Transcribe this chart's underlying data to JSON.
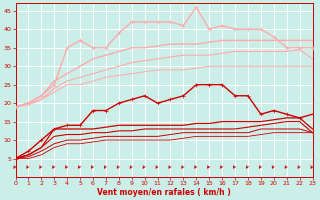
{
  "xlabel": "Vent moyen/en rafales ( km/h )",
  "xlim": [
    0,
    23
  ],
  "ylim": [
    0,
    47
  ],
  "yticks": [
    5,
    10,
    15,
    20,
    25,
    30,
    35,
    40,
    45
  ],
  "xticks": [
    0,
    1,
    2,
    3,
    4,
    5,
    6,
    7,
    8,
    9,
    10,
    11,
    12,
    13,
    14,
    15,
    16,
    17,
    18,
    19,
    20,
    21,
    22,
    23
  ],
  "bg_color": "#cceee8",
  "grid_color": "#ffffff",
  "series": [
    {
      "y": [
        19,
        20,
        22,
        25,
        35,
        37,
        35,
        35,
        39,
        42,
        42,
        42,
        42,
        41,
        46,
        40,
        41,
        40,
        40,
        40,
        38,
        35,
        35,
        35
      ],
      "color": "#ffaaaa",
      "lw": 1.0,
      "marker": "+",
      "ms": 3.0
    },
    {
      "y": [
        19,
        20,
        22,
        26,
        28,
        30,
        32,
        33,
        34,
        35,
        35,
        35.5,
        36,
        36,
        36,
        36.5,
        37,
        37,
        37,
        37,
        37,
        37,
        37,
        37
      ],
      "color": "#ffaaaa",
      "lw": 1.0,
      "marker": null,
      "ms": 0
    },
    {
      "y": [
        19,
        20,
        21,
        24,
        26,
        27,
        28,
        29,
        30,
        31,
        31.5,
        32,
        32.5,
        33,
        33,
        33,
        33.5,
        34,
        34,
        34,
        34,
        34,
        34.5,
        32
      ],
      "color": "#ffaaaa",
      "lw": 0.8,
      "marker": null,
      "ms": 0
    },
    {
      "y": [
        19,
        19.5,
        21,
        23,
        25,
        25,
        26,
        27,
        27.5,
        28,
        28.5,
        29,
        29,
        29,
        29.5,
        30,
        30,
        30,
        30,
        30,
        30,
        30,
        30,
        30
      ],
      "color": "#ffaaaa",
      "lw": 0.7,
      "marker": null,
      "ms": 0
    },
    {
      "y": [
        5,
        7,
        10,
        13,
        14,
        14,
        18,
        18,
        20,
        21,
        22,
        20,
        21,
        22,
        25,
        25,
        25,
        22,
        22,
        17,
        18,
        17,
        16,
        17
      ],
      "color": "#cc0000",
      "lw": 1.0,
      "marker": "+",
      "ms": 3.0
    },
    {
      "y": [
        5,
        6,
        8,
        13,
        13,
        13,
        13,
        13.5,
        14,
        14,
        14,
        14,
        14,
        14,
        14.5,
        14.5,
        15,
        15,
        15,
        15,
        15.5,
        16,
        16,
        13
      ],
      "color": "#cc0000",
      "lw": 0.9,
      "marker": null,
      "ms": 0
    },
    {
      "y": [
        5,
        6,
        8,
        11,
        11.5,
        11.5,
        12,
        12,
        12.5,
        12.5,
        13,
        13,
        13,
        13,
        13,
        13,
        13,
        13,
        13.5,
        14,
        14.5,
        15,
        15,
        12
      ],
      "color": "#cc0000",
      "lw": 0.8,
      "marker": null,
      "ms": 0
    },
    {
      "y": [
        5,
        5.5,
        7,
        9,
        10,
        10,
        10.5,
        11,
        11,
        11,
        11,
        11,
        11.5,
        12,
        12,
        12,
        12,
        12,
        12,
        13,
        13,
        13,
        13,
        12
      ],
      "color": "#cc0000",
      "lw": 0.7,
      "marker": null,
      "ms": 0
    },
    {
      "y": [
        5,
        5,
        6,
        8,
        9,
        9,
        9.5,
        10,
        10,
        10,
        10,
        10,
        10,
        10.5,
        11,
        11,
        11,
        11,
        11,
        11.5,
        12,
        12,
        12,
        12
      ],
      "color": "#cc0000",
      "lw": 0.6,
      "marker": null,
      "ms": 0
    }
  ],
  "arrow_color": "#cc0000"
}
